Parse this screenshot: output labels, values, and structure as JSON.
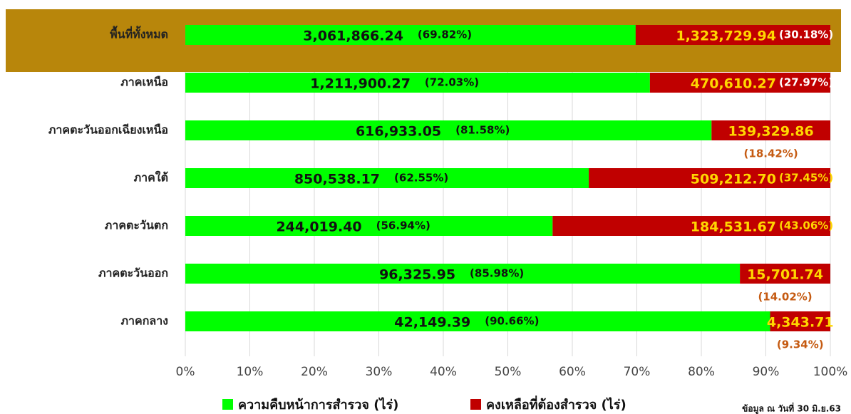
{
  "chart_data": {
    "type": "stacked-bar-horizontal",
    "categories": [
      "พื้นที่ทั้งหมด",
      "ภาคเหนือ",
      "ภาคตะวันออกเฉียงเหนือ",
      "ภาคใต้",
      "ภาคตะวันตก",
      "ภาคตะวันออก",
      "ภาคกลาง"
    ],
    "series": [
      {
        "name": "ความคืบหน้าการสำรวจ (ไร่)",
        "color": "#00ff00",
        "values": [
          69.82,
          72.03,
          81.58,
          62.55,
          56.94,
          85.98,
          90.66
        ],
        "value_labels": [
          "(69.82%)",
          "(72.03%)",
          "(81.58%)",
          "(62.55%)",
          "(56.94%)",
          "(85.98%)",
          "(90.66%)"
        ],
        "area_labels": [
          "3,061,866.24",
          "1,211,900.27",
          "616,933.05",
          "850,538.17",
          "244,019.40",
          "96,325.95",
          "42,149.39"
        ]
      },
      {
        "name": "คงเหลือที่ต้องสำรวจ (ไร่)",
        "color": "#c00000",
        "values": [
          30.18,
          27.97,
          18.42,
          37.45,
          43.06,
          14.02,
          9.34
        ],
        "value_labels": [
          "(30.18%)",
          "(27.97%)",
          "(18.42%)",
          "(37.45%)",
          "(43.06%)",
          "(14.02%)",
          "(9.34%)"
        ],
        "area_labels": [
          "1,323,729.94",
          "470,610.27",
          "139,329.86",
          "509,212.70",
          "184,531.67",
          "15,701.74",
          "4,343.71"
        ]
      }
    ],
    "xlim": [
      0,
      100
    ],
    "xticks": [
      {
        "value": 0,
        "label": "0%"
      },
      {
        "value": 10,
        "label": "10%"
      },
      {
        "value": 20,
        "label": "20%"
      },
      {
        "value": 30,
        "label": "30%"
      },
      {
        "value": 40,
        "label": "40%"
      },
      {
        "value": 50,
        "label": "50%"
      },
      {
        "value": 60,
        "label": "60%"
      },
      {
        "value": 70,
        "label": "70%"
      },
      {
        "value": 80,
        "label": "80%"
      },
      {
        "value": 90,
        "label": "90%"
      },
      {
        "value": 100,
        "label": "100%"
      }
    ],
    "grid": true,
    "legend": "bottom",
    "note": "ข้อมูล ณ วันที่ 30 มิ.ย.63"
  }
}
